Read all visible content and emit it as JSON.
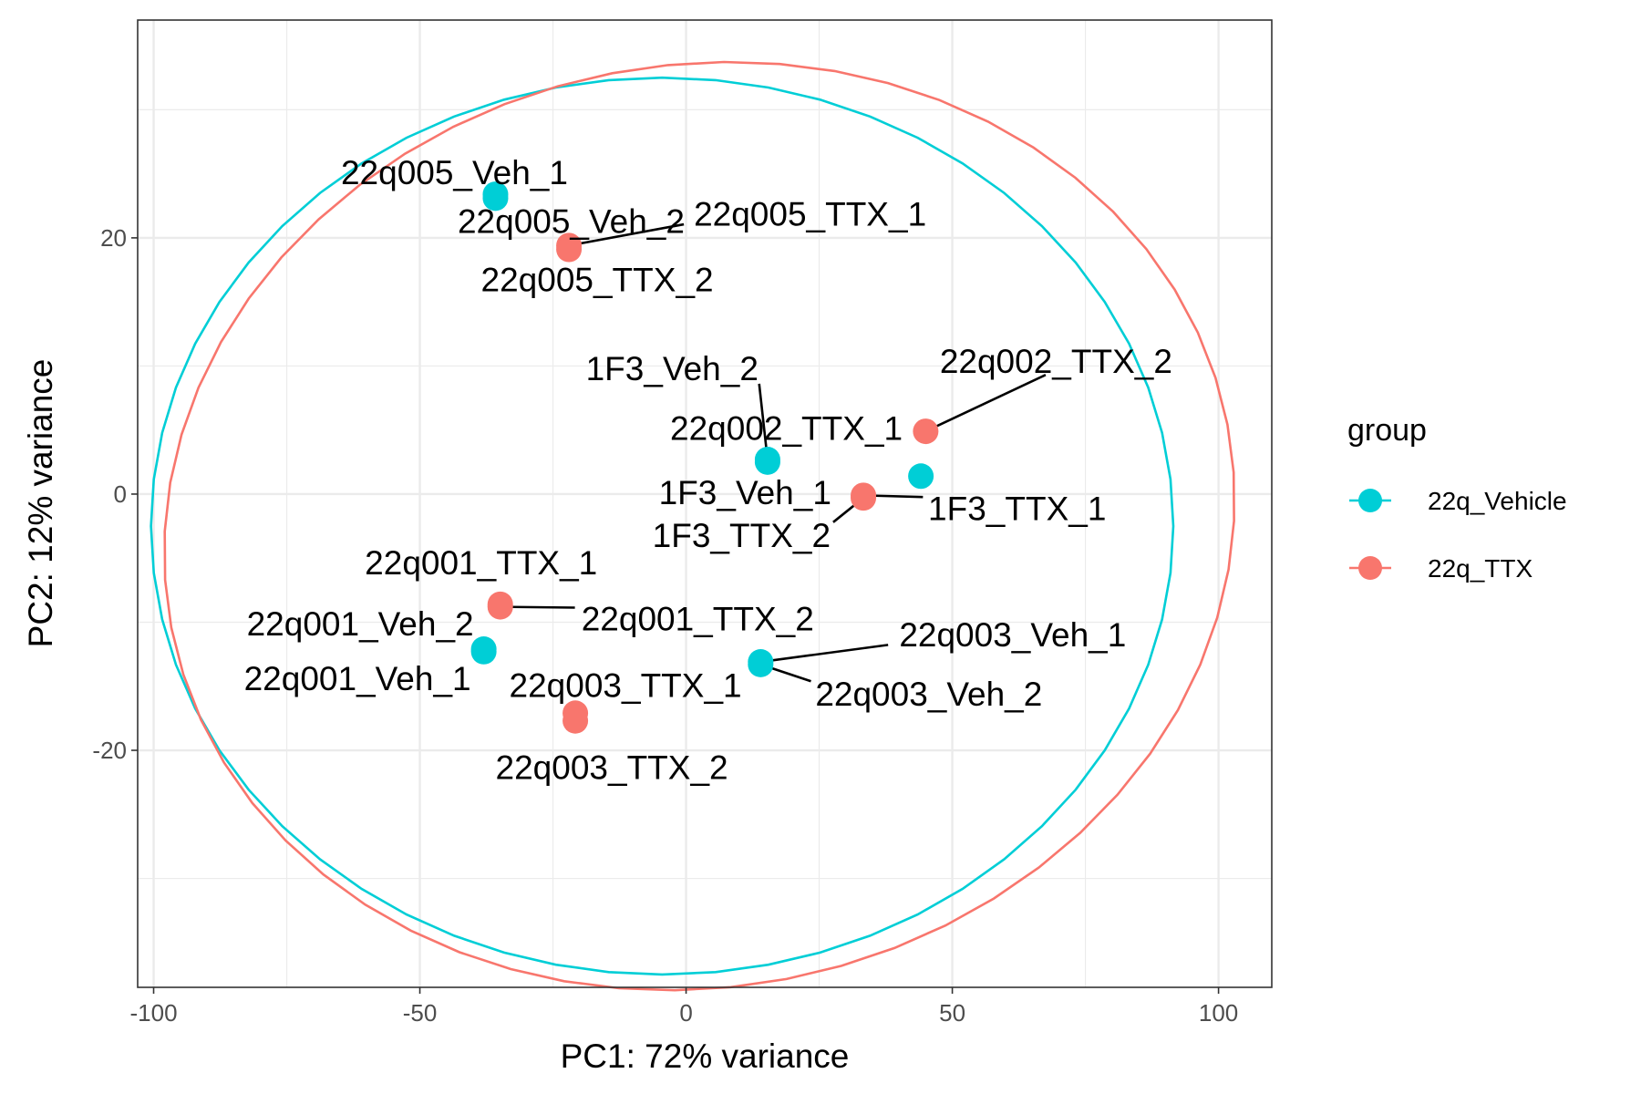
{
  "chart_data": {
    "type": "scatter",
    "xlabel": "PC1: 72% variance",
    "ylabel": "PC2: 12% variance",
    "xlim": [
      -103,
      110
    ],
    "ylim": [
      -38.5,
      37
    ],
    "x_ticks": [
      -100,
      -50,
      0,
      50,
      100
    ],
    "y_ticks": [
      -20,
      0,
      20
    ],
    "x_tick_labels": [
      "-100",
      "-50",
      "0",
      "50",
      "100"
    ],
    "y_tick_labels": [
      "-20",
      "0",
      "20"
    ],
    "grid": true,
    "legend": {
      "title": "group",
      "position": "right",
      "entries": [
        {
          "label": "22q_Vehicle",
          "color": "#00CED6"
        },
        {
          "label": "22q_TTX",
          "color": "#F8766D"
        }
      ]
    },
    "series": [
      {
        "name": "22q_Vehicle",
        "color": "#00CED6",
        "points": [
          {
            "label": "22q005_Veh_1",
            "x": -35.8,
            "y": 23.4
          },
          {
            "label": "22q005_Veh_2",
            "x": -35.8,
            "y": 23.1
          },
          {
            "label": "1F3_Veh_2",
            "x": 15.3,
            "y": 2.7
          },
          {
            "label": "1F3_Veh_1",
            "x": 15.3,
            "y": 2.5
          },
          {
            "label": "22q002_TTX_1",
            "x": 44.1,
            "y": 1.4
          },
          {
            "label": "22q001_Veh_2",
            "x": -38,
            "y": -12.1
          },
          {
            "label": "22q001_Veh_1",
            "x": -38,
            "y": -12.3
          },
          {
            "label": "22q003_Veh_1",
            "x": 14,
            "y": -13.1
          },
          {
            "label": "22q003_Veh_2",
            "x": 14,
            "y": -13.3
          }
        ]
      },
      {
        "name": "22q_TTX",
        "color": "#F8766D",
        "points": [
          {
            "label": "22q005_TTX_1",
            "x": -22,
            "y": 19.4
          },
          {
            "label": "22q005_TTX_2",
            "x": -22,
            "y": 19.1
          },
          {
            "label": "22q002_TTX_2",
            "x": 45,
            "y": 4.9
          },
          {
            "label": "1F3_TTX_1",
            "x": 33.3,
            "y": -0.1
          },
          {
            "label": "1F3_TTX_2",
            "x": 33.3,
            "y": -0.3
          },
          {
            "label": "22q001_TTX_1",
            "x": -34.9,
            "y": -8.6
          },
          {
            "label": "22q001_TTX_2",
            "x": -34.9,
            "y": -8.8
          },
          {
            "label": "22q003_TTX_1",
            "x": -20.8,
            "y": -17.1
          },
          {
            "label": "22q003_TTX_2",
            "x": -20.8,
            "y": -17.7
          }
        ]
      }
    ],
    "ellipses": [
      {
        "group": "22q_Vehicle",
        "color": "#00CED6"
      },
      {
        "group": "22q_TTX",
        "color": "#F8766D"
      }
    ]
  }
}
